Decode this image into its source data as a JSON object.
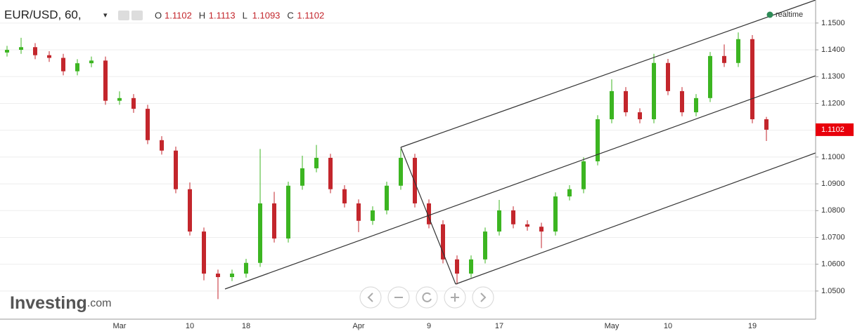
{
  "header": {
    "symbol": "EUR/USD, 60,",
    "ohlc": [
      {
        "label": "O",
        "value": 1.1102
      },
      {
        "label": "H",
        "value": 1.1113
      },
      {
        "label": "L",
        "value": 1.1093
      },
      {
        "label": "C",
        "value": 1.1102
      }
    ],
    "status": "realtime"
  },
  "watermark": {
    "brand": "Investing",
    "suffix": ".com"
  },
  "chart_data": {
    "type": "candlestick",
    "categories": [
      null,
      null,
      null,
      null,
      null,
      null,
      null,
      null,
      "Mar",
      null,
      null,
      null,
      null,
      "10",
      null,
      null,
      null,
      "18",
      null,
      null,
      null,
      null,
      null,
      null,
      null,
      "Apr",
      null,
      null,
      null,
      null,
      "9",
      null,
      null,
      null,
      null,
      "17",
      null,
      null,
      null,
      null,
      null,
      null,
      null,
      "May",
      null,
      null,
      null,
      "10",
      null,
      null,
      null,
      null,
      null,
      "19",
      null
    ],
    "open": [
      1.139,
      1.14,
      1.141,
      1.138,
      1.137,
      1.132,
      1.135,
      1.136,
      1.121,
      1.122,
      1.118,
      1.1063,
      1.1024,
      1.088,
      1.0722,
      1.0565,
      1.0552,
      1.0565,
      1.0605,
      1.0827,
      1.0696,
      1.0893,
      1.0958,
      1.0997,
      1.088,
      1.0827,
      1.0762,
      1.0801,
      1.0893,
      1.0997,
      1.0827,
      1.0749,
      1.0618,
      1.0565,
      1.0618,
      1.0722,
      1.0801,
      1.0749,
      1.074,
      1.0722,
      1.0853,
      1.088,
      1.0984,
      1.1141,
      1.1246,
      1.1167,
      1.1141,
      1.1351,
      1.1246,
      1.1167,
      1.122,
      1.1377,
      1.1351,
      1.144,
      1.1141
    ],
    "high": [
      1.1415,
      1.1445,
      1.1425,
      1.1395,
      1.1385,
      1.1365,
      1.1375,
      1.1375,
      1.1245,
      1.1235,
      1.1195,
      1.1078,
      1.1039,
      1.0905,
      1.0737,
      1.058,
      1.058,
      1.062,
      1.103,
      1.087,
      1.0908,
      1.1005,
      1.1045,
      1.1012,
      1.0895,
      1.0842,
      1.0816,
      1.0908,
      1.103,
      1.1012,
      1.0842,
      1.0764,
      1.0633,
      1.0633,
      1.0737,
      1.084,
      1.0816,
      1.0764,
      1.0755,
      1.0868,
      1.0895,
      1.0999,
      1.1156,
      1.129,
      1.1261,
      1.1182,
      1.1385,
      1.1366,
      1.1261,
      1.1235,
      1.1392,
      1.142,
      1.1465,
      1.1455,
      1.115
    ],
    "low": [
      1.1375,
      1.1385,
      1.1365,
      1.1355,
      1.1305,
      1.1305,
      1.1335,
      1.1195,
      1.1195,
      1.1165,
      1.1048,
      1.1009,
      1.0865,
      1.0707,
      1.054,
      1.047,
      1.0537,
      1.055,
      1.059,
      1.0681,
      1.0681,
      1.0878,
      1.0943,
      1.0865,
      1.0812,
      1.072,
      1.0747,
      1.0786,
      1.0878,
      1.0812,
      1.0734,
      1.0603,
      1.0525,
      1.055,
      1.0603,
      1.0707,
      1.0734,
      1.0725,
      1.066,
      1.0707,
      1.0838,
      1.0865,
      1.0969,
      1.1126,
      1.1152,
      1.1126,
      1.1126,
      1.1231,
      1.1152,
      1.1152,
      1.1205,
      1.1336,
      1.1336,
      1.1126,
      1.106
    ],
    "close": [
      1.14,
      1.141,
      1.138,
      1.137,
      1.132,
      1.135,
      1.136,
      1.121,
      1.122,
      1.118,
      1.1063,
      1.1024,
      1.088,
      1.0722,
      1.0565,
      1.0552,
      1.0565,
      1.0605,
      1.0827,
      1.0696,
      1.0893,
      1.0958,
      1.0997,
      1.088,
      1.0827,
      1.0762,
      1.0801,
      1.0893,
      1.0997,
      1.0827,
      1.0749,
      1.0618,
      1.0565,
      1.0618,
      1.0722,
      1.0801,
      1.0749,
      1.074,
      1.0722,
      1.0853,
      1.088,
      1.0984,
      1.1141,
      1.1246,
      1.1167,
      1.1141,
      1.1351,
      1.1246,
      1.1167,
      1.122,
      1.1377,
      1.1351,
      1.144,
      1.1141,
      1.1102
    ],
    "up_color": "#3cb521",
    "down_color": "#c3262c",
    "last_price": 1.1102,
    "last_price_color": "#e8000b",
    "ylim": [
      1.0395,
      1.1586
    ],
    "yticks": [
      {
        "value": 1.05,
        "label": "1.0500"
      },
      {
        "value": 1.06,
        "label": "1.0600"
      },
      {
        "value": 1.07,
        "label": "1.0700"
      },
      {
        "value": 1.08,
        "label": "1.0800"
      },
      {
        "value": 1.09,
        "label": "1.0900"
      },
      {
        "value": 1.1,
        "label": "1.1000"
      },
      {
        "value": 1.11,
        "label": "1.1100"
      },
      {
        "value": 1.12,
        "label": "1.1200"
      },
      {
        "value": 1.13,
        "label": "1.1300"
      },
      {
        "value": 1.14,
        "label": "1.1400"
      },
      {
        "value": 1.15,
        "label": "1.1500"
      }
    ],
    "grid": true
  }
}
